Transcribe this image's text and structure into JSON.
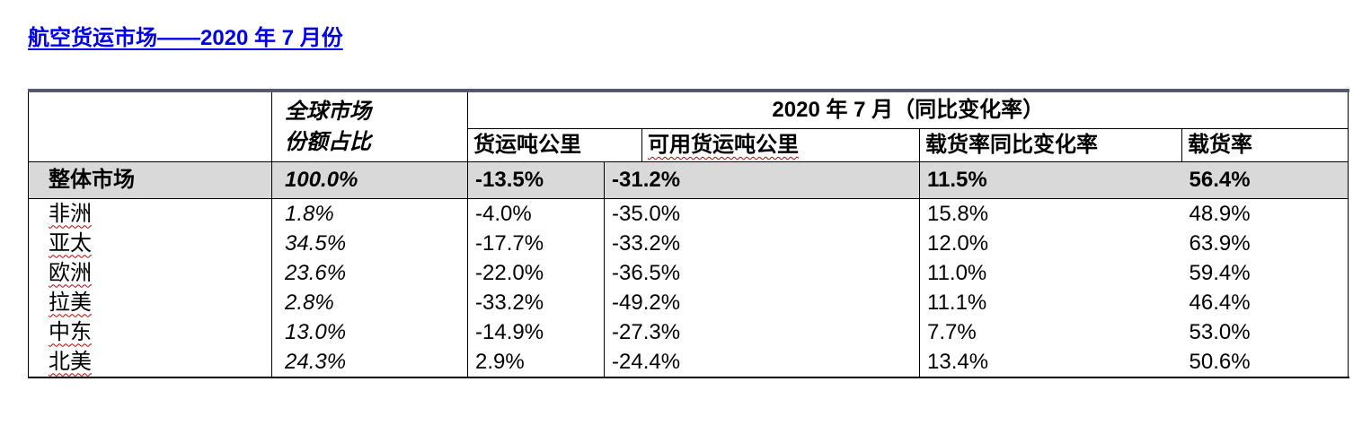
{
  "title": "航空货运市场——2020 年 7 月份",
  "header": {
    "share_line1": "全球市场",
    "share_line2": "份额占比",
    "period": "2020 年 7 月（同比变化率）",
    "columns": [
      "货运吨公里",
      "可用货运吨公里",
      "载货率同比变化率",
      "载货率"
    ]
  },
  "total": {
    "region": "整体市场",
    "share": "100.0%",
    "ctk": "-13.5%",
    "actk": "-31.2%",
    "lf_change": "11.5%",
    "lf": "56.4%"
  },
  "rows": [
    {
      "region": "非洲",
      "share": "1.8%",
      "ctk": "-4.0%",
      "actk": "-35.0%",
      "lf_change": "15.8%",
      "lf": "48.9%"
    },
    {
      "region": "亚太",
      "share": "34.5%",
      "ctk": "-17.7%",
      "actk": "-33.2%",
      "lf_change": "12.0%",
      "lf": "63.9%"
    },
    {
      "region": "欧洲",
      "share": "23.6%",
      "ctk": "-22.0%",
      "actk": "-36.5%",
      "lf_change": "11.0%",
      "lf": "59.4%"
    },
    {
      "region": "拉美",
      "share": "2.8%",
      "ctk": "-33.2%",
      "actk": "-49.2%",
      "lf_change": "11.1%",
      "lf": "46.4%"
    },
    {
      "region": "中东",
      "share": "13.0%",
      "ctk": "-14.9%",
      "actk": "-27.3%",
      "lf_change": "7.7%",
      "lf": "53.0%"
    },
    {
      "region": "北美",
      "share": "24.3%",
      "ctk": "2.9%",
      "actk": "-24.4%",
      "lf_change": "13.4%",
      "lf": "50.6%"
    }
  ],
  "colors": {
    "title": "#0000ee",
    "total_row_bg": "#d9d9d9",
    "top_rule": "#525a6e",
    "spellcheck_underline": "#c00000"
  }
}
